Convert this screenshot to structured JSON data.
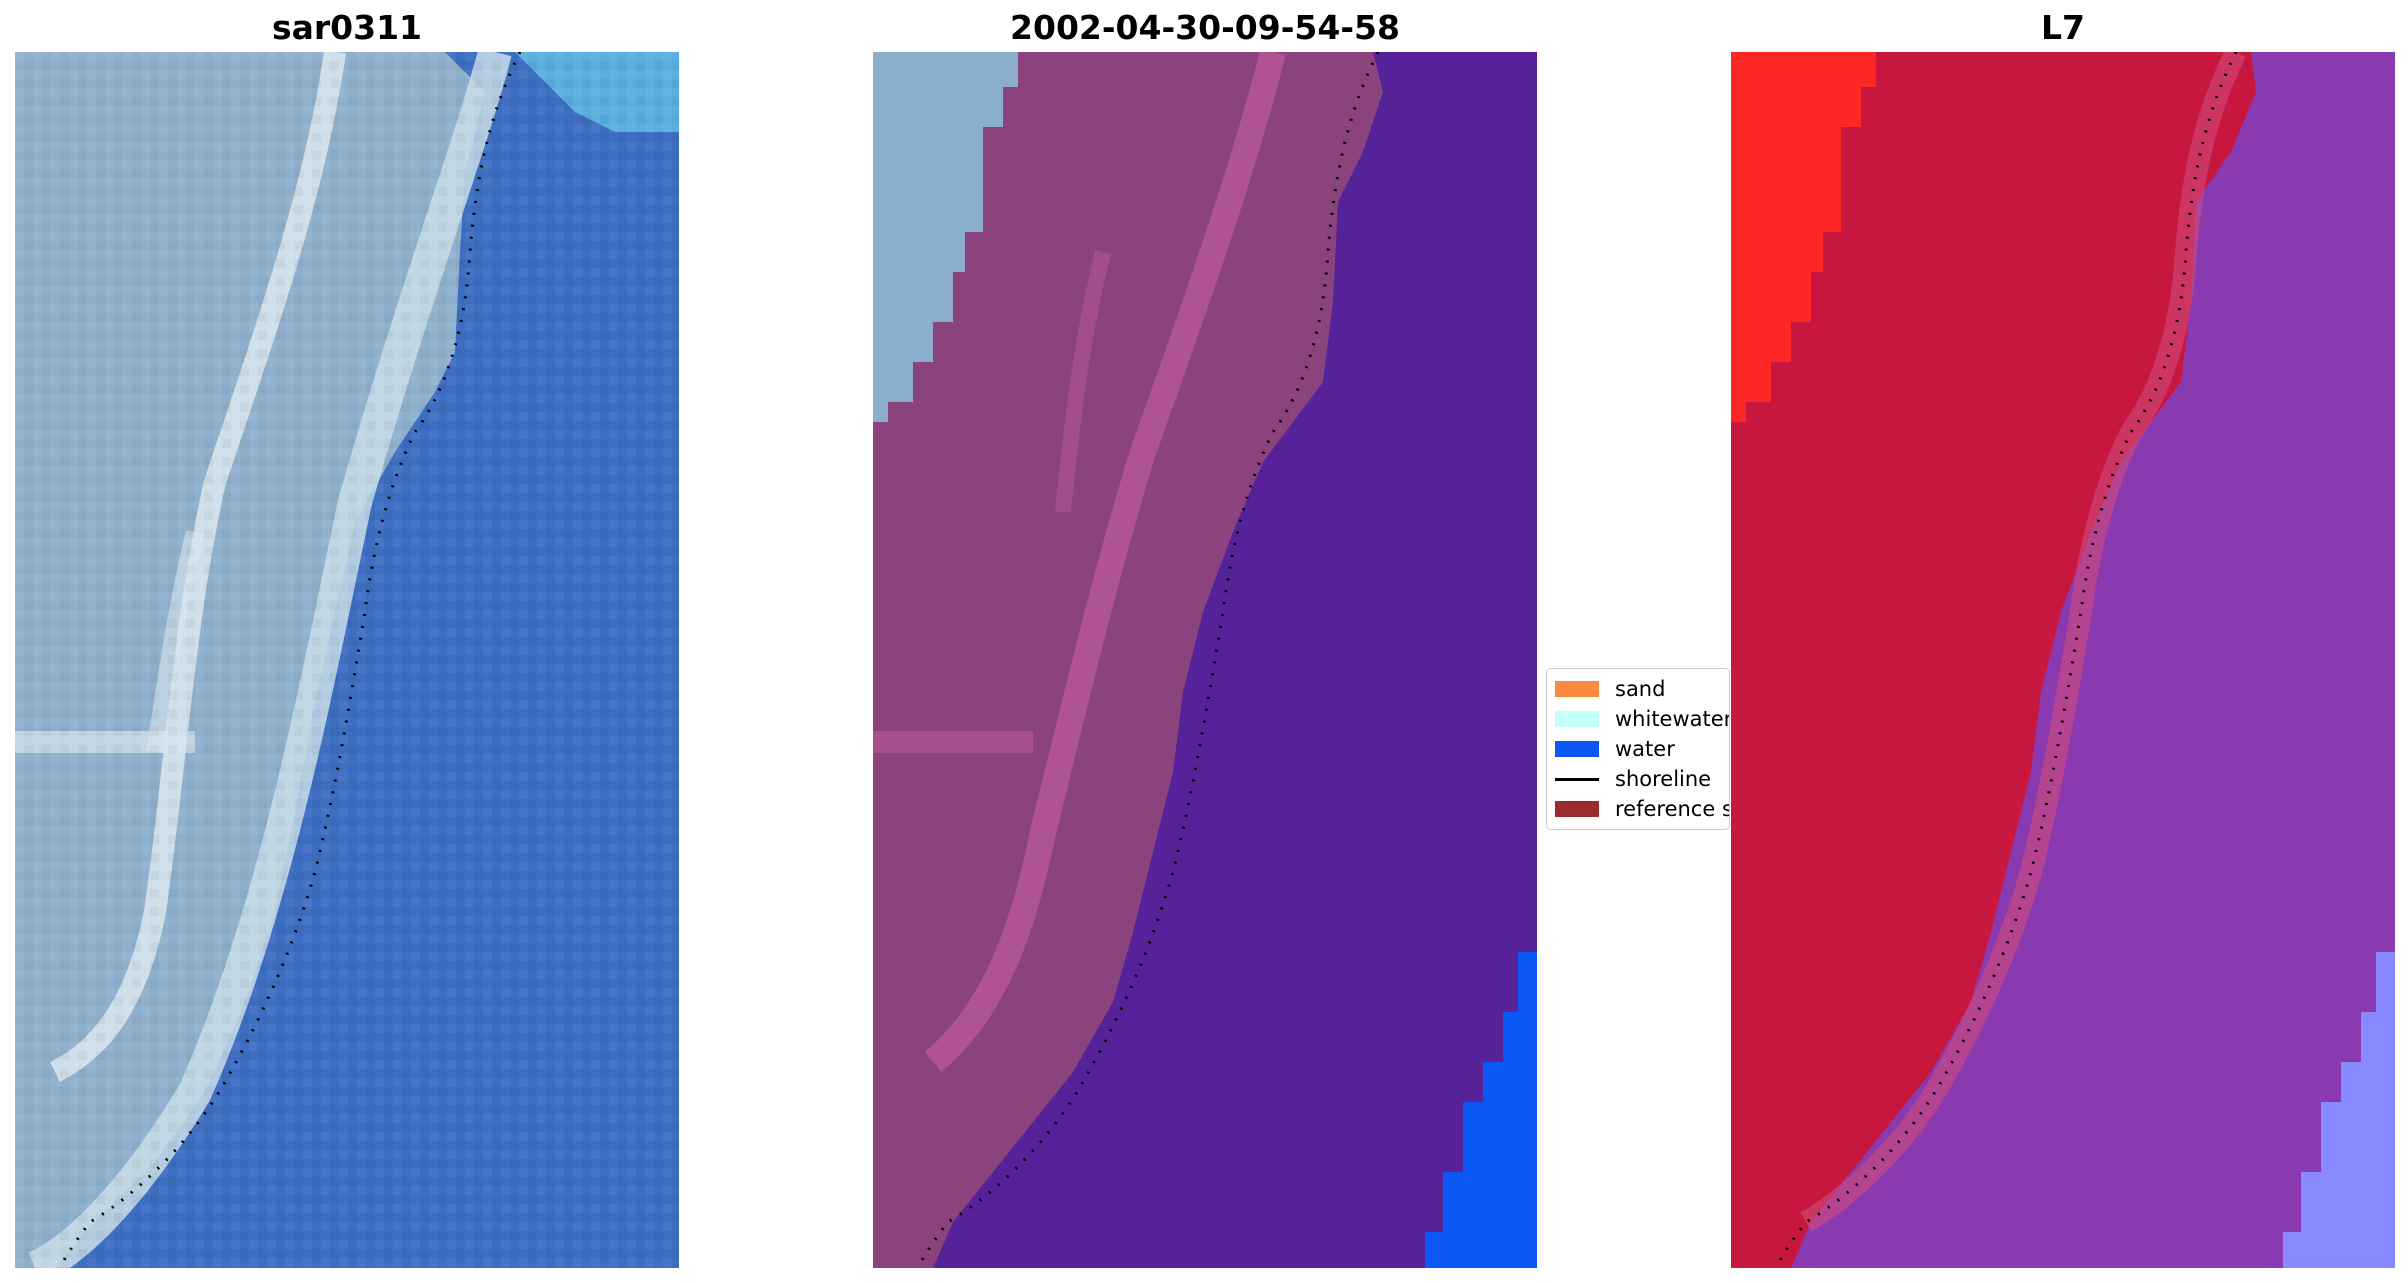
{
  "panels": [
    {
      "title": "sar0311"
    },
    {
      "title": "2002-04-30-09-54-58"
    },
    {
      "title": "L7"
    }
  ],
  "legend": {
    "items": [
      {
        "label": "sand",
        "color": "#f98b3c",
        "kind": "patch"
      },
      {
        "label": "whitewater",
        "color": "#c4fffa",
        "kind": "patch"
      },
      {
        "label": "water",
        "color": "#0b57f5",
        "kind": "patch"
      },
      {
        "label": "shoreline",
        "color": "#000000",
        "kind": "line"
      },
      {
        "label": "reference shoreline",
        "color": "#9b2b2e",
        "kind": "patch"
      }
    ]
  },
  "colors": {
    "rgb_land": "#8fb0cc",
    "rgb_beach_bright": "#dfeaf0",
    "rgb_water": "#3e6ec2",
    "rgb_water_corner": "#5aaee0",
    "class_land": "#8a437c",
    "class_land_streak": "#bb5a98",
    "class_water": "#55229a",
    "class_water_blue": "#0b57f5",
    "class_untouched": "#8aaecc",
    "l7_land": "#c7173e",
    "l7_land_bright": "#ff2626",
    "l7_water": "#8a3ab0",
    "l7_water_light": "#8888ff",
    "shoreline_dots": "#000000"
  }
}
